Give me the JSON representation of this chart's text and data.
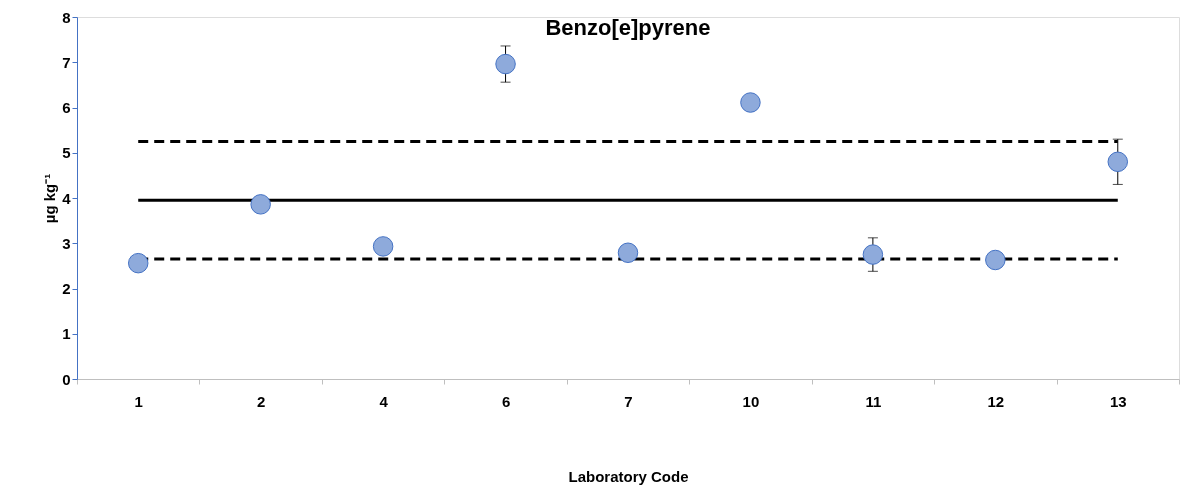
{
  "chart_data": {
    "type": "scatter",
    "title": "Benzo[e]pyrene",
    "xlabel": "Laboratory Code",
    "ylabel": "µg kg⁻¹",
    "categories": [
      "1",
      "2",
      "4",
      "6",
      "7",
      "10",
      "11",
      "12",
      "13"
    ],
    "series": [
      {
        "color": "#8eaadb",
        "values": [
          2.56,
          3.86,
          2.93,
          6.96,
          2.79,
          6.11,
          2.75,
          2.63,
          4.8
        ],
        "errors": [
          null,
          null,
          null,
          0.4,
          null,
          null,
          0.37,
          null,
          0.5
        ]
      }
    ],
    "ylim": [
      0,
      8
    ],
    "yticks": [
      0,
      1,
      2,
      3,
      4,
      5,
      6,
      7,
      8
    ],
    "marker": "circle",
    "grid": false,
    "ref_lines": [
      {
        "axis": "y",
        "value": 3.95,
        "line_style": "solid",
        "color": "#000000"
      },
      {
        "axis": "y",
        "value": 5.25,
        "line_style": "dashed",
        "color": "#000000"
      },
      {
        "axis": "y",
        "value": 2.65,
        "line_style": "dashed",
        "color": "#000000"
      }
    ]
  }
}
